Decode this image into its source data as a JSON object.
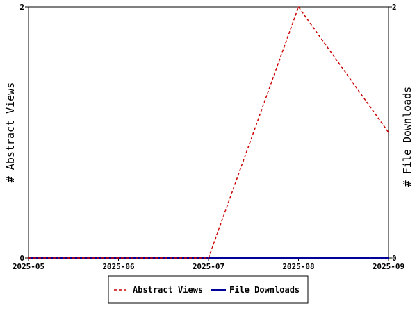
{
  "chart_data": {
    "type": "line",
    "x": [
      "2025-05",
      "2025-06",
      "2025-07",
      "2025-08",
      "2025-09"
    ],
    "series": [
      {
        "name": "Abstract Views",
        "axis": "left",
        "color": "#cc0000",
        "dashed": true,
        "values": [
          0,
          0,
          0,
          2,
          1
        ]
      },
      {
        "name": "File Downloads",
        "axis": "right",
        "color": "#000099",
        "dashed": false,
        "values": [
          0,
          0,
          0,
          0,
          0
        ]
      }
    ],
    "y_left": {
      "label": "# Abstract Views",
      "lim": [
        0,
        2
      ],
      "ticks": [
        "0",
        "2"
      ]
    },
    "y_right": {
      "label": "# File Downloads",
      "lim": [
        0,
        2
      ],
      "ticks": [
        "0",
        "2"
      ]
    },
    "grid": false,
    "legend": {
      "position": "bottom-center"
    }
  }
}
